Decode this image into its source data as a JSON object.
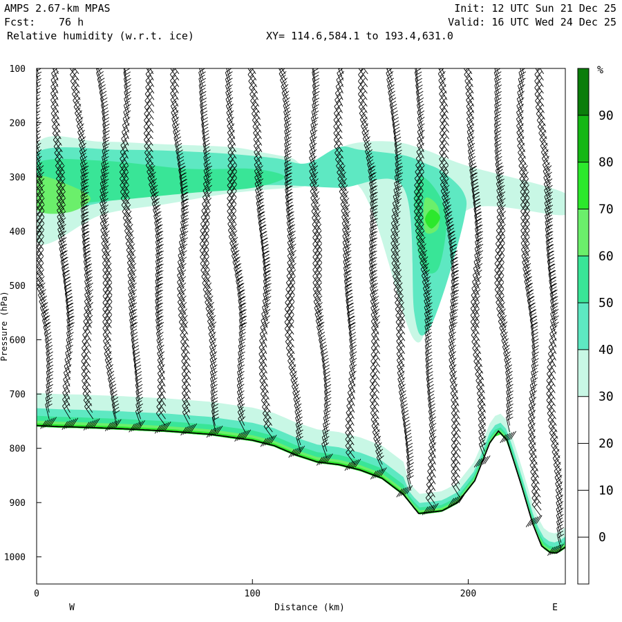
{
  "header": {
    "model": "AMPS 2.67-km MPAS",
    "forecast_label": "Fcst:",
    "forecast_value": "76 h",
    "field": "Relative humidity (w.r.t. ice)",
    "xy_range": "XY= 114.6,584.1 to 193.4,631.0",
    "init": "Init: 12 UTC Sun 21 Dec 25",
    "valid": "Valid: 16 UTC Wed 24 Dec 25"
  },
  "chart_data": {
    "type": "heatmap",
    "title": "Relative humidity (w.r.t. ice)",
    "xlabel": "Distance (km)",
    "ylabel": "Pressure (hPa)",
    "xlim": [
      0,
      245
    ],
    "ylim": [
      1050,
      100
    ],
    "x_ticks": [
      0,
      100,
      200
    ],
    "y_ticks": [
      100,
      200,
      300,
      400,
      500,
      600,
      700,
      800,
      900,
      1000
    ],
    "x_end_labels": {
      "left": "W",
      "right": "E"
    },
    "colorbar": {
      "unit": "%",
      "levels": [
        0,
        10,
        20,
        30,
        40,
        50,
        60,
        70,
        80,
        90
      ],
      "colors": [
        "#ffffff",
        "#ffffff",
        "#ffffff",
        "#ffffff",
        "#c8f7e5",
        "#5ee8c2",
        "#39e597",
        "#6bef6b",
        "#2ce82c",
        "#14b714",
        "#0a7d0a"
      ]
    },
    "terrain_surface": {
      "x": [
        0,
        10,
        20,
        40,
        60,
        80,
        100,
        110,
        120,
        130,
        140,
        150,
        160,
        170,
        177,
        182,
        188,
        195,
        203,
        210,
        214,
        218,
        224,
        230,
        234,
        238,
        241,
        245
      ],
      "p": [
        758,
        760,
        761,
        764,
        768,
        774,
        785,
        795,
        812,
        825,
        830,
        840,
        855,
        885,
        920,
        918,
        915,
        900,
        860,
        790,
        768,
        785,
        860,
        940,
        980,
        992,
        993,
        982
      ]
    },
    "rh_regions": [
      {
        "level": "30-40",
        "x": [
          0,
          30,
          60,
          90,
          105,
          118,
          125,
          145,
          165,
          180,
          200,
          245,
          245,
          200,
          185,
          175,
          150,
          120,
          90,
          60,
          30,
          0
        ],
        "p": [
          240,
          235,
          240,
          245,
          255,
          265,
          275,
          240,
          235,
          250,
          280,
          330,
          370,
          360,
          490,
          600,
          320,
          320,
          330,
          350,
          370,
          420
        ]
      },
      {
        "level": "40-50",
        "x": [
          0,
          40,
          80,
          110,
          125,
          140,
          150,
          170,
          180,
          188,
          198,
          198,
          188,
          180,
          175,
          170,
          140,
          110,
          80,
          40,
          0
        ],
        "p": [
          255,
          250,
          255,
          265,
          275,
          245,
          250,
          260,
          275,
          290,
          330,
          380,
          520,
          590,
          550,
          320,
          320,
          315,
          320,
          340,
          360
        ]
      },
      {
        "level": "50-60",
        "x": [
          0,
          30,
          70,
          100,
          115,
          100,
          70,
          30,
          0,
          178,
          186,
          190,
          186,
          178,
          175
        ],
        "p": [
          275,
          270,
          285,
          285,
          300,
          320,
          330,
          345,
          350,
          300,
          330,
          380,
          470,
          460,
          350
        ]
      },
      {
        "level": "60-70",
        "x": [
          0,
          15,
          25,
          15,
          0,
          180,
          186,
          186,
          180
        ],
        "p": [
          300,
          315,
          340,
          365,
          360,
          340,
          355,
          395,
          400
        ]
      },
      {
        "level": "70-80",
        "x": [
          183,
          187,
          183,
          180
        ],
        "p": [
          360,
          375,
          395,
          378
        ]
      },
      {
        "level": "near-surface",
        "x": [
          0,
          245
        ],
        "p": [
          740,
          760
        ]
      }
    ],
    "wind_profile_x": [
      5,
      15,
      25,
      35,
      46,
      58,
      70,
      82,
      95,
      107,
      120,
      133,
      146,
      158,
      170,
      182,
      194,
      206,
      218,
      230,
      240
    ]
  }
}
